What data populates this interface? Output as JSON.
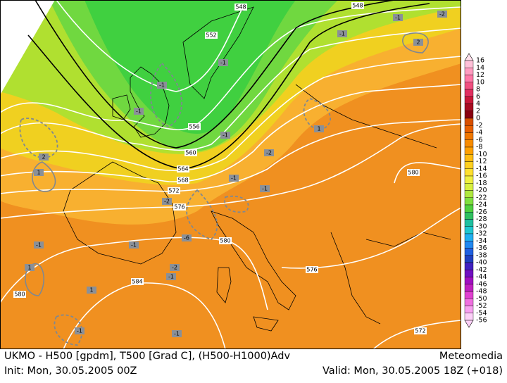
{
  "footer": {
    "line1": "UKMO - H500 [gpdm], T500 [Grad C], (H500-H1000)Adv",
    "brand": "Meteomedia",
    "init": "Init: Mon, 30.05.2005 00Z",
    "valid": "Valid: Mon, 30.05.2005 18Z (+018)"
  },
  "colorbar": {
    "levels": [
      16,
      14,
      12,
      10,
      8,
      6,
      4,
      2,
      0,
      -2,
      -4,
      -6,
      -8,
      -10,
      -12,
      -14,
      -16,
      -18,
      -20,
      -22,
      -24,
      -26,
      -28,
      -30,
      -32,
      -34,
      -36,
      -38,
      -40,
      -42,
      -44,
      -46,
      -48,
      -50,
      -52,
      -54,
      -56
    ],
    "colors": [
      "#ffe0ec",
      "#ffc0d8",
      "#ff9cc0",
      "#ff78a8",
      "#f05080",
      "#e03060",
      "#c81838",
      "#a80c20",
      "#880010",
      "#d85000",
      "#e86000",
      "#f07800",
      "#f88c00",
      "#ffa000",
      "#ffbc10",
      "#ffd020",
      "#ffe030",
      "#f0f040",
      "#d8f040",
      "#b0e840",
      "#80e040",
      "#50d040",
      "#30c060",
      "#20c0a0",
      "#20c8d0",
      "#20b0f0",
      "#2088f0",
      "#2060e0",
      "#2040c0",
      "#4020c0",
      "#7010c0",
      "#a010c0",
      "#c020c0",
      "#e040d0",
      "#f070e0",
      "#f8a0f0",
      "#fcd0f8"
    ]
  },
  "geopotential_labels": [
    "548",
    "548",
    "552",
    "556",
    "560",
    "564",
    "568",
    "572",
    "576",
    "580",
    "584",
    "576",
    "580",
    "580",
    "572"
  ],
  "advection_labels": [
    "-2",
    "2",
    "-1",
    "-1",
    "-1",
    "-1",
    "-1",
    "-1",
    "1",
    "2",
    "1",
    "-2",
    "-1",
    "-2",
    "-1",
    "-1",
    "-6",
    "-2",
    "-1",
    "1",
    "1",
    "-1",
    "-1",
    "-1"
  ]
}
